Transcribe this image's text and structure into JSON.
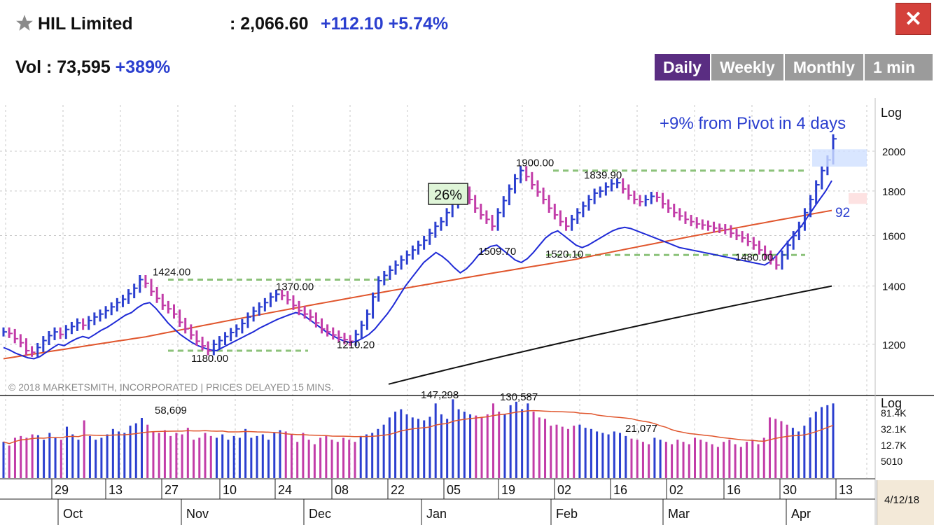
{
  "header": {
    "stock_name": "HIL Limited",
    "price": ": 2,066.60",
    "change": "+112.10 +5.74%",
    "volume_label": "Vol : 73,595",
    "volume_change": "+389%",
    "close_label": "✕"
  },
  "tabs": [
    {
      "label": "Daily",
      "active": true
    },
    {
      "label": "Weekly",
      "active": false
    },
    {
      "label": "Monthly",
      "active": false
    },
    {
      "label": "1 min ▾",
      "active": false
    }
  ],
  "colors": {
    "up": "#2b3fcf",
    "down": "#c23ca8",
    "rs_line": "#1f2ad6",
    "ma_red": "#e0552c",
    "ma_black": "#111111",
    "support": "#8cc27a"
  },
  "chart_data": {
    "type": "bar",
    "scale": "log",
    "price_axis_label": "Log",
    "volume_axis_label": "Log",
    "price_ticks": [
      1200,
      1400,
      1600,
      1800,
      2000
    ],
    "volume_ticks": [
      "81.4K",
      "32.1K",
      "12.7K",
      "5010"
    ],
    "x_day_labels": [
      "29",
      "13",
      "27",
      "10",
      "24",
      "08",
      "22",
      "05",
      "19",
      "02",
      "16",
      "02",
      "16",
      "30",
      "13"
    ],
    "x_month_labels": [
      "Oct",
      "Nov",
      "Dec",
      "Jan",
      "Feb",
      "Mar",
      "Apr"
    ],
    "annotations": [
      "+9% from Pivot in 4 days",
      "26%",
      "92"
    ],
    "price_labels": [
      "1424.00",
      "1180.00",
      "1370.00",
      "1210.20",
      "1509.70",
      "1900.00",
      "1520.10",
      "1839.90",
      "1480.00"
    ],
    "volume_labels": [
      "58,609",
      "147,298",
      "130,587",
      "21,077"
    ],
    "copyright": "© 2018 MARKETSMITH, INCORPORATED | PRICES DELAYED 15 MINS.",
    "date": "4/12/18",
    "last_close": 2066.6,
    "series": [
      {
        "name": "Price",
        "close": [
          1240,
          1235,
          1218,
          1205,
          1180,
          1175,
          1190,
          1212,
          1228,
          1240,
          1232,
          1248,
          1258,
          1270,
          1262,
          1278,
          1290,
          1300,
          1312,
          1325,
          1340,
          1352,
          1372,
          1392,
          1424,
          1410,
          1380,
          1355,
          1330,
          1318,
          1300,
          1272,
          1250,
          1230,
          1210,
          1195,
          1180,
          1200,
          1212,
          1225,
          1238,
          1250,
          1268,
          1290,
          1310,
          1325,
          1340,
          1360,
          1370,
          1365,
          1350,
          1330,
          1312,
          1300,
          1290,
          1270,
          1250,
          1240,
          1230,
          1222,
          1215,
          1210,
          1232,
          1262,
          1300,
          1360,
          1420,
          1440,
          1460,
          1480,
          1500,
          1520,
          1540,
          1560,
          1580,
          1610,
          1640,
          1660,
          1700,
          1740,
          1780,
          1800,
          1760,
          1720,
          1690,
          1670,
          1640,
          1700,
          1755,
          1810,
          1860,
          1900,
          1870,
          1830,
          1795,
          1760,
          1720,
          1690,
          1660,
          1640,
          1670,
          1700,
          1730,
          1760,
          1790,
          1800,
          1820,
          1835,
          1839.9,
          1810,
          1780,
          1760,
          1750,
          1760,
          1775,
          1770,
          1740,
          1720,
          1700,
          1685,
          1670,
          1660,
          1650,
          1645,
          1640,
          1632,
          1630,
          1625,
          1610,
          1600,
          1590,
          1575,
          1560,
          1540,
          1520,
          1500,
          1480,
          1520,
          1560,
          1600,
          1640,
          1700,
          1760,
          1830,
          1900,
          1954.5,
          2066.6
        ]
      },
      {
        "name": "Volume",
        "values": [
          18000,
          15000,
          22000,
          24000,
          22000,
          26000,
          25000,
          20000,
          28000,
          22000,
          20000,
          38000,
          26000,
          20000,
          52000,
          24000,
          20000,
          22000,
          26000,
          34000,
          30000,
          28000,
          40000,
          45000,
          58609,
          42000,
          30000,
          28000,
          32000,
          24000,
          28000,
          26000,
          36000,
          20000,
          22000,
          28000,
          24000,
          22000,
          26000,
          20000,
          24000,
          22000,
          34000,
          22000,
          24000,
          26000,
          20000,
          28000,
          32000,
          30000,
          26000,
          18000,
          28000,
          20000,
          16000,
          22000,
          24000,
          20000,
          18000,
          22000,
          20000,
          18000,
          24000,
          26000,
          28000,
          34000,
          42000,
          60000,
          80000,
          90000,
          70000,
          60000,
          56000,
          52000,
          62000,
          120000,
          70000,
          56000,
          147298,
          90000,
          80000,
          70000,
          66000,
          62000,
          70000,
          120000,
          80000,
          70000,
          110000,
          130587,
          90000,
          120000,
          80000,
          60000,
          56000,
          40000,
          42000,
          38000,
          34000,
          40000,
          42000,
          36000,
          34000,
          30000,
          28000,
          26000,
          30000,
          28000,
          24000,
          21077,
          20000,
          18000,
          16000,
          22000,
          20000,
          18000,
          16000,
          20000,
          18000,
          16000,
          22000,
          20000,
          18000,
          16000,
          14000,
          18000,
          20000,
          16000,
          14000,
          18000,
          20000,
          16000,
          22000,
          60000,
          56000,
          50000,
          42000,
          36000,
          30000,
          40000,
          60000,
          80000,
          100000,
          110000,
          120000
        ]
      },
      {
        "name": "RS Line",
        "values": [
          1190,
          1182,
          1172,
          1165,
          1158,
          1155,
          1162,
          1175,
          1188,
          1200,
          1196,
          1208,
          1218,
          1225,
          1220,
          1232,
          1245,
          1255,
          1268,
          1282,
          1296,
          1305,
          1322,
          1335,
          1340,
          1320,
          1295,
          1270,
          1250,
          1232,
          1218,
          1205,
          1195,
          1188,
          1182,
          1180,
          1190,
          1200,
          1210,
          1220,
          1230,
          1240,
          1252,
          1262,
          1272,
          1282,
          1290,
          1298,
          1305,
          1300,
          1285,
          1270,
          1255,
          1240,
          1228,
          1218,
          1210,
          1205,
          1210,
          1220,
          1232,
          1250,
          1275,
          1300,
          1330,
          1365,
          1400,
          1430,
          1460,
          1490,
          1510,
          1530,
          1515,
          1495,
          1470,
          1450,
          1465,
          1490,
          1520,
          1540,
          1555,
          1560,
          1540,
          1520,
          1500,
          1490,
          1505,
          1530,
          1560,
          1590,
          1610,
          1620,
          1600,
          1580,
          1560,
          1550,
          1560,
          1575,
          1590,
          1605,
          1620,
          1630,
          1635,
          1630,
          1620,
          1610,
          1600,
          1590,
          1580,
          1570,
          1560,
          1550,
          1545,
          1540,
          1535,
          1530,
          1525,
          1520,
          1515,
          1510,
          1505,
          1500,
          1495,
          1490,
          1485,
          1480,
          1495,
          1520,
          1550,
          1580,
          1610,
          1640,
          1680,
          1720,
          1760,
          1800,
          1850
        ]
      },
      {
        "name": "50-day MA",
        "values": [
          1155,
          1158,
          1161,
          1164,
          1167,
          1170,
          1173,
          1176,
          1179,
          1182,
          1185,
          1188,
          1191,
          1194,
          1197,
          1200,
          1203,
          1206,
          1209,
          1212,
          1215,
          1218,
          1221,
          1224,
          1228,
          1232,
          1236,
          1240,
          1244,
          1248,
          1252,
          1256,
          1260,
          1264,
          1268,
          1272,
          1276,
          1280,
          1284,
          1288,
          1292,
          1296,
          1300,
          1304,
          1308,
          1312,
          1316,
          1320,
          1324,
          1328,
          1332,
          1336,
          1340,
          1344,
          1348,
          1352,
          1356,
          1360,
          1364,
          1368,
          1372,
          1376,
          1380,
          1384,
          1388,
          1392,
          1396,
          1400,
          1404,
          1408,
          1412,
          1416,
          1420,
          1424,
          1428,
          1432,
          1436,
          1440,
          1444,
          1448,
          1452,
          1456,
          1460,
          1464,
          1468,
          1472,
          1476,
          1480,
          1484,
          1488,
          1492,
          1496,
          1500,
          1505,
          1510,
          1515,
          1520,
          1525,
          1530,
          1535,
          1540,
          1545,
          1550,
          1555,
          1560,
          1565,
          1570,
          1575,
          1580,
          1585,
          1590,
          1595,
          1600,
          1605,
          1610,
          1615,
          1620,
          1625,
          1630,
          1635,
          1640,
          1645,
          1650,
          1655,
          1660,
          1665,
          1670,
          1675,
          1680,
          1685,
          1690,
          1695,
          1700,
          1705,
          1710
        ]
      },
      {
        "name": "200-day MA",
        "values": [
          1080,
          1085,
          1090,
          1095,
          1100,
          1105,
          1110,
          1115,
          1120,
          1125,
          1130,
          1135,
          1140,
          1145,
          1150,
          1155,
          1160,
          1165,
          1170,
          1175,
          1180,
          1185,
          1190,
          1195,
          1200,
          1205,
          1210,
          1215,
          1220,
          1225,
          1230,
          1235,
          1240,
          1245,
          1250,
          1255,
          1260,
          1265,
          1270,
          1275,
          1280,
          1285,
          1290,
          1295,
          1300,
          1305,
          1310,
          1315,
          1320,
          1325,
          1330,
          1335,
          1340,
          1345,
          1350,
          1355,
          1360,
          1365,
          1370,
          1375,
          1380,
          1385,
          1390,
          1395,
          1400
        ]
      }
    ]
  }
}
